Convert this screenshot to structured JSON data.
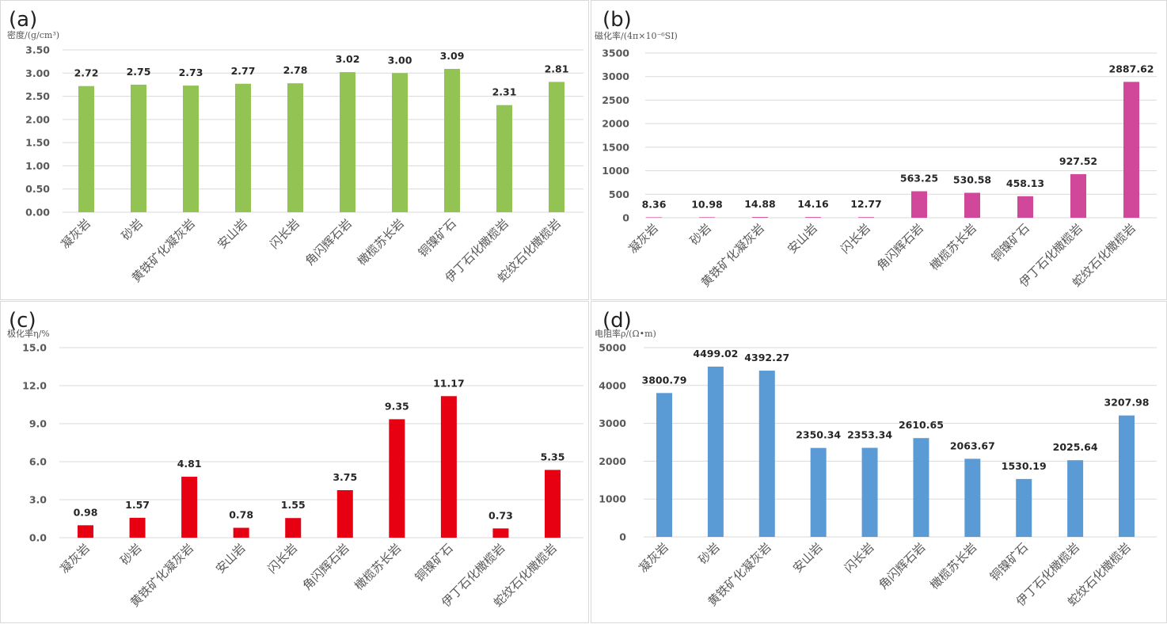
{
  "chart_data": [
    {
      "type": "bar",
      "panel_label": "(a)",
      "title": "",
      "ylabel": "密度/(g/cm³)",
      "xlabel": "",
      "ylim": [
        0,
        3.5
      ],
      "yticks": [
        "0.00",
        "0.50",
        "1.00",
        "1.50",
        "2.00",
        "2.50",
        "3.00",
        "3.50"
      ],
      "ytick_values": [
        0,
        0.5,
        1.0,
        1.5,
        2.0,
        2.5,
        3.0,
        3.5
      ],
      "grid": true,
      "color": "#92c353",
      "categories": [
        "凝灰岩",
        "砂岩",
        "黄铁矿化凝灰岩",
        "安山岩",
        "闪长岩",
        "角闪辉石岩",
        "橄榄苏长岩",
        "铜镍矿石",
        "伊丁石化橄榄岩",
        "蛇纹石化橄榄岩"
      ],
      "values": [
        2.72,
        2.75,
        2.73,
        2.77,
        2.78,
        3.02,
        3.0,
        3.09,
        2.31,
        2.81
      ],
      "value_labels": [
        "2.72",
        "2.75",
        "2.73",
        "2.77",
        "2.78",
        "3.02",
        "3.00",
        "3.09",
        "2.31",
        "2.81"
      ]
    },
    {
      "type": "bar",
      "panel_label": "(b)",
      "title": "",
      "ylabel": "磁化率/(4π×10⁻⁶SI)",
      "xlabel": "",
      "ylim": [
        0,
        3500
      ],
      "yticks": [
        "0",
        "500",
        "1000",
        "1500",
        "2000",
        "2500",
        "3000",
        "3500"
      ],
      "ytick_values": [
        0,
        500,
        1000,
        1500,
        2000,
        2500,
        3000,
        3500
      ],
      "grid": true,
      "color": "#d1479a",
      "categories": [
        "凝灰岩",
        "砂岩",
        "黄铁矿化凝灰岩",
        "安山岩",
        "闪长岩",
        "角闪辉石岩",
        "橄榄苏长岩",
        "铜镍矿石",
        "伊丁石化橄榄岩",
        "蛇纹石化橄榄岩"
      ],
      "values": [
        8.36,
        10.98,
        14.88,
        14.16,
        12.77,
        563.25,
        530.58,
        458.13,
        927.52,
        2887.62
      ],
      "value_labels": [
        "8.36",
        "10.98",
        "14.88",
        "14.16",
        "12.77",
        "563.25",
        "530.58",
        "458.13",
        "927.52",
        "2887.62"
      ]
    },
    {
      "type": "bar",
      "panel_label": "(c)",
      "title": "",
      "ylabel": "极化率η/%",
      "xlabel": "",
      "ylim": [
        0,
        15
      ],
      "yticks": [
        "0.0",
        "3.0",
        "6.0",
        "9.0",
        "12.0",
        "15.0"
      ],
      "ytick_values": [
        0,
        3,
        6,
        9,
        12,
        15
      ],
      "grid": true,
      "color": "#e60012",
      "categories": [
        "凝灰岩",
        "砂岩",
        "黄铁矿化凝灰岩",
        "安山岩",
        "闪长岩",
        "角闪辉石岩",
        "橄榄苏长岩",
        "铜镍矿石",
        "伊丁石化橄榄岩",
        "蛇纹石化橄榄岩"
      ],
      "values": [
        0.98,
        1.57,
        4.81,
        0.78,
        1.55,
        3.75,
        9.35,
        11.17,
        0.73,
        5.35
      ],
      "value_labels": [
        "0.98",
        "1.57",
        "4.81",
        "0.78",
        "1.55",
        "3.75",
        "9.35",
        "11.17",
        "0.73",
        "5.35"
      ]
    },
    {
      "type": "bar",
      "panel_label": "(d)",
      "title": "",
      "ylabel": "电阻率ρ/(Ω•m)",
      "xlabel": "",
      "ylim": [
        0,
        5000
      ],
      "yticks": [
        "0",
        "1000",
        "2000",
        "3000",
        "4000",
        "5000"
      ],
      "ytick_values": [
        0,
        1000,
        2000,
        3000,
        4000,
        5000
      ],
      "grid": true,
      "color": "#5b9bd5",
      "categories": [
        "凝灰岩",
        "砂岩",
        "黄铁矿化凝灰岩",
        "安山岩",
        "闪长岩",
        "角闪辉石岩",
        "橄榄苏长岩",
        "铜镍矿石",
        "伊丁石化橄榄岩",
        "蛇纹石化橄榄岩"
      ],
      "values": [
        3800.79,
        4499.02,
        4392.27,
        2350.34,
        2353.34,
        2610.65,
        2063.67,
        1530.19,
        2025.64,
        3207.98
      ],
      "value_labels": [
        "3800.79",
        "4499.02",
        "4392.27",
        "2350.34",
        "2353.34",
        "2610.65",
        "2063.67",
        "1530.19",
        "2025.64",
        "3207.98"
      ]
    }
  ]
}
